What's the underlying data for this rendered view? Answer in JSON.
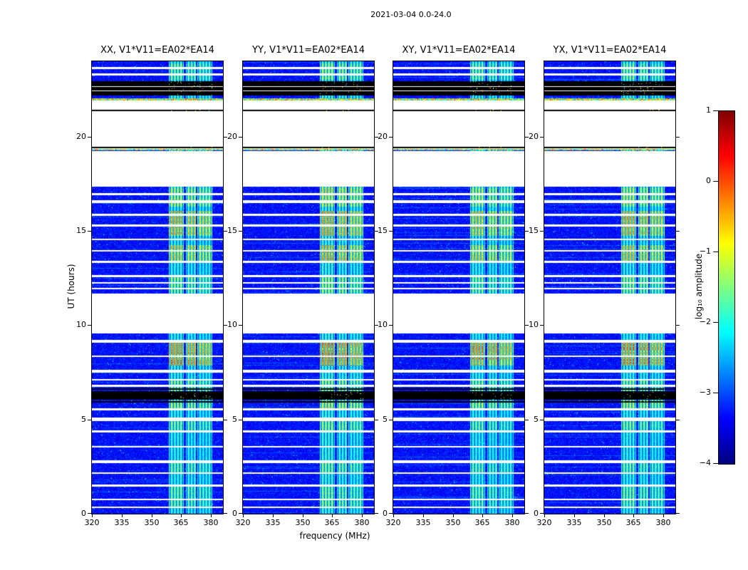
{
  "chart_data": {
    "type": "heatmap",
    "title": "2021-03-04 0.0-24.0",
    "xlabel": "frequency (MHz)",
    "ylabel": "UT (hours)",
    "x_range": [
      320,
      386
    ],
    "y_range": [
      0,
      24
    ],
    "x_ticks": {
      "values": [
        320,
        335,
        350,
        365,
        380
      ],
      "labels": [
        "320",
        "335",
        "350",
        "365",
        "380"
      ]
    },
    "y_ticks": {
      "values": [
        0,
        5,
        10,
        15,
        20
      ],
      "labels": [
        "0",
        "5",
        "10",
        "15",
        "20"
      ]
    },
    "panels": [
      {
        "title": "XX, V1*V11=EA02*EA14",
        "pol": "XX",
        "brightness": 1.0,
        "seed": 101
      },
      {
        "title": "YY, V1*V11=EA02*EA14",
        "pol": "YY",
        "brightness": 1.08,
        "seed": 202
      },
      {
        "title": "XY, V1*V11=EA02*EA14",
        "pol": "XY",
        "brightness": 0.96,
        "seed": 303
      },
      {
        "title": "YX, V1*V11=EA02*EA14",
        "pol": "YX",
        "brightness": 1.02,
        "seed": 404
      }
    ],
    "colorbar": {
      "label": "log₁₀ amplitude",
      "ticks": {
        "values": [
          1,
          0,
          -1,
          -2,
          -3,
          -4
        ],
        "labels": [
          "1",
          "0",
          "−1",
          "−2",
          "−3",
          "−4"
        ]
      },
      "range": [
        -4,
        1
      ],
      "colormap": "jet"
    },
    "features": {
      "background_amplitude_range": [
        -3.6,
        -3.0
      ],
      "band": {
        "sub_bands": [
          [
            358.5,
            366.2,
            1.0
          ],
          [
            367.0,
            372.3,
            0.92
          ],
          [
            372.8,
            380.6,
            0.85
          ]
        ],
        "stripe_period_mhz": 1.55
      },
      "time_segments": [
        {
          "start": 0,
          "end": 6.05,
          "type": "data"
        },
        {
          "start": 6.05,
          "end": 6.5,
          "type": "black"
        },
        {
          "start": 6.5,
          "end": 9.57,
          "type": "data"
        },
        {
          "start": 9.57,
          "end": 11.67,
          "type": "gap"
        },
        {
          "start": 11.67,
          "end": 17.33,
          "type": "data"
        },
        {
          "start": 17.33,
          "end": 19.25,
          "type": "gap"
        },
        {
          "start": 19.25,
          "end": 19.35,
          "type": "data"
        },
        {
          "start": 19.35,
          "end": 21.93,
          "type": "gap"
        },
        {
          "start": 21.93,
          "end": 22.17,
          "type": "data"
        },
        {
          "start": 22.17,
          "end": 22.95,
          "type": "black"
        },
        {
          "start": 22.95,
          "end": 24.01,
          "type": "data"
        }
      ],
      "white_lines": [
        {
          "t": 23.65,
          "w": 0.05
        },
        {
          "t": 23.3,
          "w": 0.05
        },
        {
          "t": 22.42,
          "w": 0.025
        },
        {
          "t": 22.65,
          "w": 0.025
        },
        {
          "t": 16.95,
          "w": 0.05
        },
        {
          "t": 16.55,
          "w": 0.07
        },
        {
          "t": 15.85,
          "w": 0.05
        },
        {
          "t": 15.3,
          "w": 0.06
        },
        {
          "t": 14.55,
          "w": 0.05
        },
        {
          "t": 13.95,
          "w": 0.05
        },
        {
          "t": 13.35,
          "w": 0.05
        },
        {
          "t": 12.6,
          "w": 0.06
        },
        {
          "t": 12.25,
          "w": 0.045
        },
        {
          "t": 11.95,
          "w": 0.045
        },
        {
          "t": 9.15,
          "w": 0.08
        },
        {
          "t": 8.35,
          "w": 0.05
        },
        {
          "t": 7.55,
          "w": 0.07
        },
        {
          "t": 7.1,
          "w": 0.05
        },
        {
          "t": 6.78,
          "w": 0.05
        },
        {
          "t": 5.55,
          "w": 0.06
        },
        {
          "t": 5.0,
          "w": 0.09
        },
        {
          "t": 4.35,
          "w": 0.06
        },
        {
          "t": 3.55,
          "w": 0.05
        },
        {
          "t": 2.75,
          "w": 0.08
        },
        {
          "t": 2.15,
          "w": 0.05
        },
        {
          "t": 1.5,
          "w": 0.06
        },
        {
          "t": 0.75,
          "w": 0.05
        },
        {
          "t": 0.35,
          "w": 0.045
        }
      ],
      "black_lines": [
        {
          "t": 21.4,
          "w": 0.035
        },
        {
          "t": 19.42,
          "w": 0.04
        },
        {
          "t": 5.92,
          "w": 0.04
        },
        {
          "t": 6.62,
          "w": 0.03
        }
      ],
      "hot_lines": [
        {
          "t": 21.97,
          "w": 0.05
        },
        {
          "t": 19.3,
          "w": 0.04
        }
      ],
      "bright_patches": [
        {
          "t0": 7.85,
          "t1": 9.1,
          "boost": 1.9
        },
        {
          "t0": 13.3,
          "t1": 14.25,
          "boost": 1.4
        },
        {
          "t0": 14.75,
          "t1": 16.05,
          "boost": 1.55
        },
        {
          "t0": 16.3,
          "t1": 17.3,
          "boost": 1.0
        },
        {
          "t0": 11.7,
          "t1": 12.6,
          "boost": 0.7
        },
        {
          "t0": 5.6,
          "t1": 6.0,
          "boost": 0.9
        },
        {
          "t0": 6.5,
          "t1": 7.1,
          "boost": 0.7
        },
        {
          "t0": 4.4,
          "t1": 5.0,
          "boost": 0.55
        },
        {
          "t0": 2.2,
          "t1": 2.8,
          "boost": 0.5
        },
        {
          "t0": 0.3,
          "t1": 1.5,
          "boost": 0.5
        },
        {
          "t0": 23.0,
          "t1": 23.9,
          "boost": 0.6
        }
      ]
    }
  }
}
